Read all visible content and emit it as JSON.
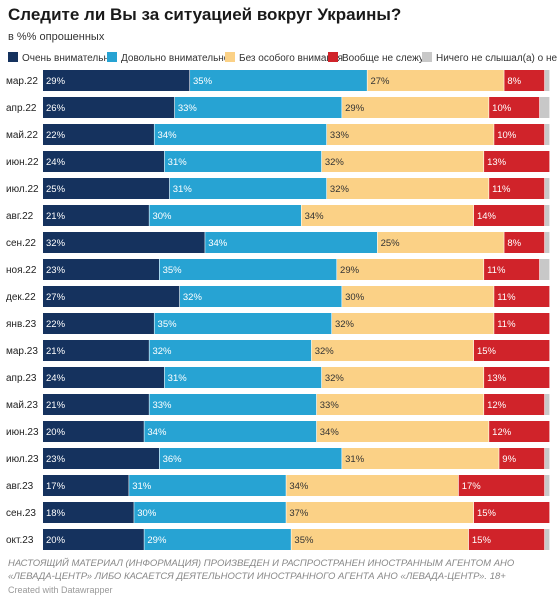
{
  "title": "Следите ли Вы за ситуацией вокруг Украины?",
  "subtitle": "в %% опрошенных",
  "footnote": "НАСТОЯЩИЙ МАТЕРИАЛ (ИНФОРМАЦИЯ) ПРОИЗВЕДЕН И РАСПРОСТРАНЕН ИНОСТРАННЫМ АГЕНТОМ АНО «ЛЕВАДА-ЦЕНТР» ЛИБО КАСАЕТСЯ ДЕЯТЕЛЬНОСТИ ИНОСТРАННОГО АГЕНТА АНО «ЛЕВАДА-ЦЕНТР». 18+",
  "credit": "Created with Datawrapper",
  "chart_data": {
    "type": "bar",
    "orientation": "horizontal",
    "stacked": true,
    "legend_position": "top",
    "xlim": [
      0,
      100
    ],
    "categories": [
      "мар.22",
      "апр.22",
      "май.22",
      "июн.22",
      "июл.22",
      "авг.22",
      "сен.22",
      "ноя.22",
      "дек.22",
      "янв.23",
      "мар.23",
      "апр.23",
      "май.23",
      "июн.23",
      "июл.23",
      "авг.23",
      "сен.23",
      "окт.23"
    ],
    "series": [
      {
        "name": "Очень внимательно",
        "color": "#15325e",
        "values": [
          29,
          26,
          22,
          24,
          25,
          21,
          32,
          23,
          27,
          22,
          21,
          24,
          21,
          20,
          23,
          17,
          18,
          20
        ]
      },
      {
        "name": "Довольно внимательно",
        "color": "#27a3d3",
        "values": [
          35,
          33,
          34,
          31,
          31,
          30,
          34,
          35,
          32,
          35,
          32,
          31,
          33,
          34,
          36,
          31,
          30,
          29
        ]
      },
      {
        "name": "Без особого внимания",
        "color": "#fbd186",
        "values": [
          27,
          29,
          33,
          32,
          32,
          34,
          25,
          29,
          30,
          32,
          32,
          32,
          33,
          34,
          31,
          34,
          37,
          35
        ]
      },
      {
        "name": "Вообще не слежу",
        "color": "#d0232a",
        "values": [
          8,
          10,
          10,
          13,
          11,
          14,
          8,
          11,
          11,
          11,
          15,
          13,
          12,
          12,
          9,
          17,
          15,
          15
        ]
      },
      {
        "name": "Ничего не слышал(а) о ней",
        "color": "#c8c8c8",
        "values": [
          1,
          2,
          1,
          0,
          1,
          1,
          1,
          2,
          0,
          0,
          0,
          0,
          1,
          0,
          1,
          1,
          0,
          1
        ]
      }
    ],
    "value_labels": [
      [
        "29%",
        "35%",
        "27%",
        "8%",
        ""
      ],
      [
        "26%",
        "33%",
        "29%",
        "10%",
        ""
      ],
      [
        "22%",
        "34%",
        "33%",
        "10%",
        ""
      ],
      [
        "24%",
        "31%",
        "32%",
        "13%",
        ""
      ],
      [
        "25%",
        "31%",
        "32%",
        "11%",
        ""
      ],
      [
        "21%",
        "30%",
        "34%",
        "14%",
        ""
      ],
      [
        "32%",
        "34%",
        "25%",
        "8%",
        ""
      ],
      [
        "23%",
        "35%",
        "29%",
        "11%",
        ""
      ],
      [
        "27%",
        "32%",
        "30%",
        "11%",
        ""
      ],
      [
        "22%",
        "35%",
        "32%",
        "11%",
        ""
      ],
      [
        "21%",
        "32%",
        "32%",
        "15%",
        ""
      ],
      [
        "24%",
        "31%",
        "32%",
        "13%",
        ""
      ],
      [
        "21%",
        "33%",
        "33%",
        "12%",
        ""
      ],
      [
        "20%",
        "34%",
        "34%",
        "12%",
        ""
      ],
      [
        "23%",
        "36%",
        "31%",
        "9%",
        ""
      ],
      [
        "17%",
        "31%",
        "34%",
        "17%",
        ""
      ],
      [
        "18%",
        "30%",
        "37%",
        "15%",
        ""
      ],
      [
        "20%",
        "29%",
        "35%",
        "15%",
        ""
      ]
    ]
  }
}
